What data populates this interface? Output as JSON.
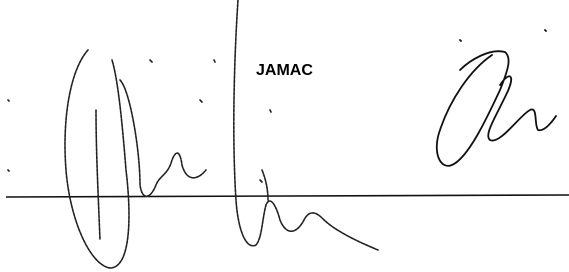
{
  "label": "JAMAC"
}
